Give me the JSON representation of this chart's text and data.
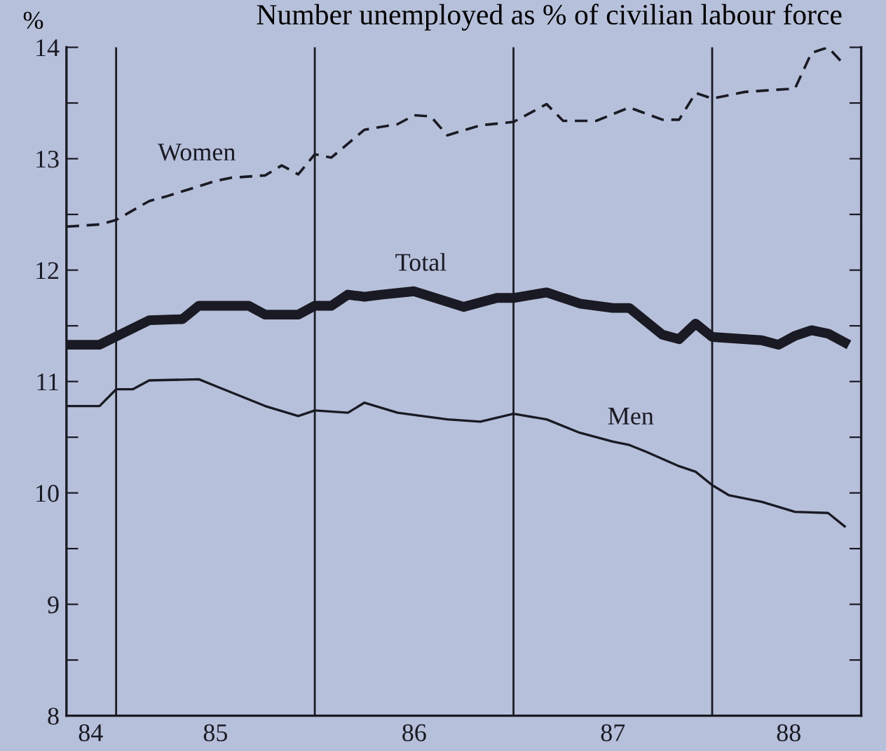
{
  "chart_data": {
    "type": "line",
    "title": "Number unemployed as % of civilian labour force",
    "ylabel": "%",
    "xlim": [
      "1984-10",
      "1988-10"
    ],
    "xticks": [
      {
        "value": "1984-11-15",
        "label": "84"
      },
      {
        "value": "1985-07-01",
        "label": "85"
      },
      {
        "value": "1986-07-01",
        "label": "86"
      },
      {
        "value": "1987-07-01",
        "label": "87"
      },
      {
        "value": "1988-05-20",
        "label": "88"
      }
    ],
    "ylim": [
      8,
      14
    ],
    "yticks": [
      8,
      {
        "value": 8.5,
        "label": null
      },
      9,
      {
        "value": 9.5,
        "label": null
      },
      10,
      {
        "value": 10.5,
        "label": null
      },
      11,
      {
        "value": 11.5,
        "label": null
      },
      12,
      {
        "value": 12.5,
        "label": null
      },
      13,
      {
        "value": 13.5,
        "label": null
      },
      14
    ],
    "grid": false,
    "legend": false,
    "ref_lines": [
      {
        "axis": "x",
        "value": "1985-01",
        "color": "#1a1a24"
      },
      {
        "axis": "x",
        "value": "1986-01",
        "color": "#1a1a24"
      },
      {
        "axis": "x",
        "value": "1987-01",
        "color": "#1a1a24"
      },
      {
        "axis": "x",
        "value": "1988-01",
        "color": "#1a1a24"
      }
    ],
    "series": [
      {
        "name": "Women",
        "color": "#1a1a24",
        "line_style": "dashed",
        "x": [
          "1984-10",
          "1984-12",
          "1985-01",
          "1985-03",
          "1985-04",
          "1985-07",
          "1985-08",
          "1985-10",
          "1985-11",
          "1985-12",
          "1986-01",
          "1986-02",
          "1986-04",
          "1986-06",
          "1986-07",
          "1986-08",
          "1986-09",
          "1986-11",
          "1987-01",
          "1987-03",
          "1987-04",
          "1987-06",
          "1987-08",
          "1987-10",
          "1987-11",
          "1987-12",
          "1988-01",
          "1988-03",
          "1988-06",
          "1988-07",
          "1988-08",
          "1988-09"
        ],
        "values": [
          12.39,
          12.41,
          12.45,
          12.62,
          12.66,
          12.8,
          12.83,
          12.85,
          12.94,
          12.86,
          13.04,
          13.01,
          13.26,
          13.31,
          13.39,
          13.38,
          13.21,
          13.3,
          13.33,
          13.49,
          13.34,
          13.34,
          13.46,
          13.35,
          13.35,
          13.59,
          13.54,
          13.6,
          13.63,
          13.95,
          14.0,
          13.84
        ]
      },
      {
        "name": "Total",
        "color": "#1a1a24",
        "line_style": "solid",
        "x": [
          "1984-10",
          "1984-12",
          "1985-03",
          "1985-05",
          "1985-06",
          "1985-09",
          "1985-10",
          "1985-12",
          "1986-01",
          "1986-02",
          "1986-03",
          "1986-04",
          "1986-05",
          "1986-07",
          "1986-10",
          "1986-12",
          "1987-01",
          "1987-03",
          "1987-05",
          "1987-07",
          "1987-08",
          "1987-10",
          "1987-11",
          "1987-12",
          "1988-01",
          "1988-04",
          "1988-05",
          "1988-06",
          "1988-07",
          "1988-08",
          "1988-09"
        ],
        "values": [
          11.33,
          11.33,
          11.55,
          11.56,
          11.68,
          11.68,
          11.6,
          11.6,
          11.68,
          11.68,
          11.78,
          11.76,
          11.78,
          11.81,
          11.67,
          11.75,
          11.75,
          11.8,
          11.7,
          11.66,
          11.66,
          11.42,
          11.38,
          11.52,
          11.4,
          11.37,
          11.33,
          11.41,
          11.46,
          11.43,
          11.35
        ]
      },
      {
        "name": "Men",
        "color": "#1a1a24",
        "line_style": "solid",
        "x": [
          "1984-10",
          "1984-12",
          "1985-01",
          "1985-02",
          "1985-03",
          "1985-06",
          "1985-07",
          "1985-10",
          "1985-12",
          "1986-01",
          "1986-03",
          "1986-04",
          "1986-06",
          "1986-09",
          "1986-11",
          "1987-01",
          "1987-03",
          "1987-05",
          "1987-07",
          "1987-08",
          "1987-09",
          "1987-11",
          "1987-12",
          "1988-01",
          "1988-02",
          "1988-04",
          "1988-06",
          "1988-08",
          "1988-09"
        ],
        "values": [
          10.78,
          10.78,
          10.93,
          10.93,
          11.01,
          11.02,
          10.96,
          10.78,
          10.69,
          10.74,
          10.72,
          10.81,
          10.72,
          10.66,
          10.64,
          10.71,
          10.66,
          10.54,
          10.46,
          10.43,
          10.37,
          10.24,
          10.19,
          10.07,
          9.98,
          9.92,
          9.83,
          9.82,
          9.7
        ]
      }
    ]
  }
}
